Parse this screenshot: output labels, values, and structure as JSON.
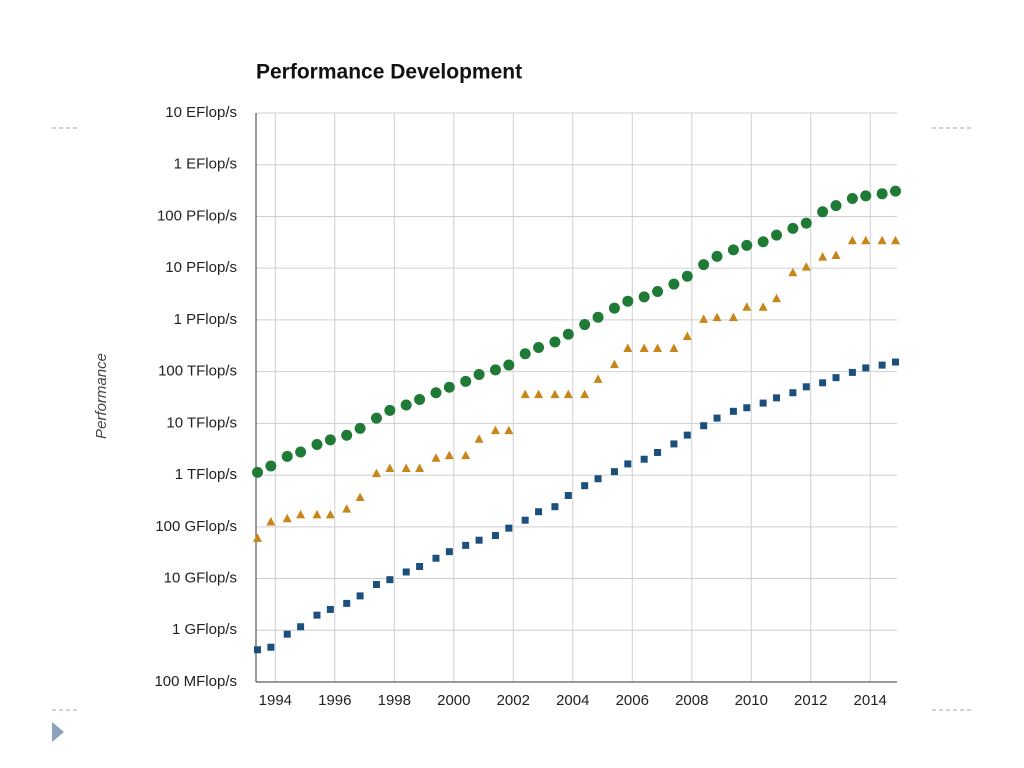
{
  "chart_data": {
    "type": "scatter",
    "title": "Performance Development",
    "ylabel": "Performance",
    "ylog": true,
    "grid": true,
    "x": [
      1993.4,
      1993.85,
      1994.4,
      1994.85,
      1995.4,
      1995.85,
      1996.4,
      1996.85,
      1997.4,
      1997.85,
      1998.4,
      1998.85,
      1999.4,
      1999.85,
      2000.4,
      2000.85,
      2001.4,
      2001.85,
      2002.4,
      2002.85,
      2003.4,
      2003.85,
      2004.4,
      2004.85,
      2005.4,
      2005.85,
      2006.4,
      2006.85,
      2007.4,
      2007.85,
      2008.4,
      2008.85,
      2009.4,
      2009.85,
      2010.4,
      2010.85,
      2011.4,
      2011.85,
      2012.4,
      2012.85,
      2013.4,
      2013.85,
      2014.4,
      2014.85
    ],
    "xlim": [
      1993.35,
      2014.9
    ],
    "xticks": [
      1994,
      1996,
      1998,
      2000,
      2002,
      2004,
      2006,
      2008,
      2010,
      2012,
      2014
    ],
    "ylim": [
      0.1,
      10000000000
    ],
    "yticks": [
      {
        "value": 0.1,
        "label": "100 MFlop/s"
      },
      {
        "value": 1,
        "label": "1 GFlop/s"
      },
      {
        "value": 10,
        "label": "10 GFlop/s"
      },
      {
        "value": 100,
        "label": "100 GFlop/s"
      },
      {
        "value": 1000,
        "label": "1 TFlop/s"
      },
      {
        "value": 10000,
        "label": "10 TFlop/s"
      },
      {
        "value": 100000,
        "label": "100 TFlop/s"
      },
      {
        "value": 1000000,
        "label": "1 PFlop/s"
      },
      {
        "value": 10000000,
        "label": "10 PFlop/s"
      },
      {
        "value": 100000000,
        "label": "100 PFlop/s"
      },
      {
        "value": 1000000000,
        "label": "1 EFlop/s"
      },
      {
        "value": 10000000000,
        "label": "10 EFlop/s"
      }
    ],
    "series": [
      {
        "color": "#1f7a35",
        "marker": "circle",
        "values": [
          1128,
          1500,
          2300,
          2800,
          3900,
          4800,
          5900,
          8000,
          12600,
          17800,
          22600,
          29000,
          39000,
          50000,
          65000,
          88000,
          108000,
          134000,
          222000,
          293000,
          375000,
          529000,
          813000,
          1127000,
          1690000,
          2300000,
          2790000,
          3540000,
          4920000,
          6970000,
          11700000,
          16950000,
          22600000,
          27600000,
          32400000,
          43600000,
          58900000,
          74200000,
          123000000,
          162000000,
          223000000,
          250000000,
          274000000,
          309000000
        ]
      },
      {
        "color": "#c8861a",
        "marker": "triangle",
        "values": [
          59.7,
          124,
          143,
          170,
          170,
          170,
          220.4,
          368.2,
          1068,
          1338,
          1338,
          1338,
          2121,
          2379,
          2379,
          4938,
          7226,
          7226,
          35860,
          35860,
          35860,
          35860,
          35860,
          70720,
          136800,
          280600,
          280600,
          280600,
          280600,
          478200,
          1026000,
          1105000,
          1105000,
          1759000,
          1759000,
          2566000,
          8162000,
          10510000,
          16320000,
          17590000,
          33860000,
          33860000,
          33860000,
          33860000
        ]
      },
      {
        "color": "#1d4f7c",
        "marker": "square",
        "values": [
          0.42,
          0.47,
          0.84,
          1.17,
          1.96,
          2.53,
          3.31,
          4.62,
          7.67,
          9.51,
          13.4,
          17.1,
          24.7,
          33.1,
          43.8,
          55.1,
          67.8,
          94.3,
          134.3,
          195.8,
          245.1,
          403.4,
          624,
          850.6,
          1166,
          1645,
          2026,
          2737,
          4005,
          5929,
          9000,
          12640,
          17090,
          20050,
          24670,
          31120,
          39100,
          50900,
          60800,
          76500,
          96600,
          117900,
          133700,
          153400
        ]
      }
    ]
  }
}
